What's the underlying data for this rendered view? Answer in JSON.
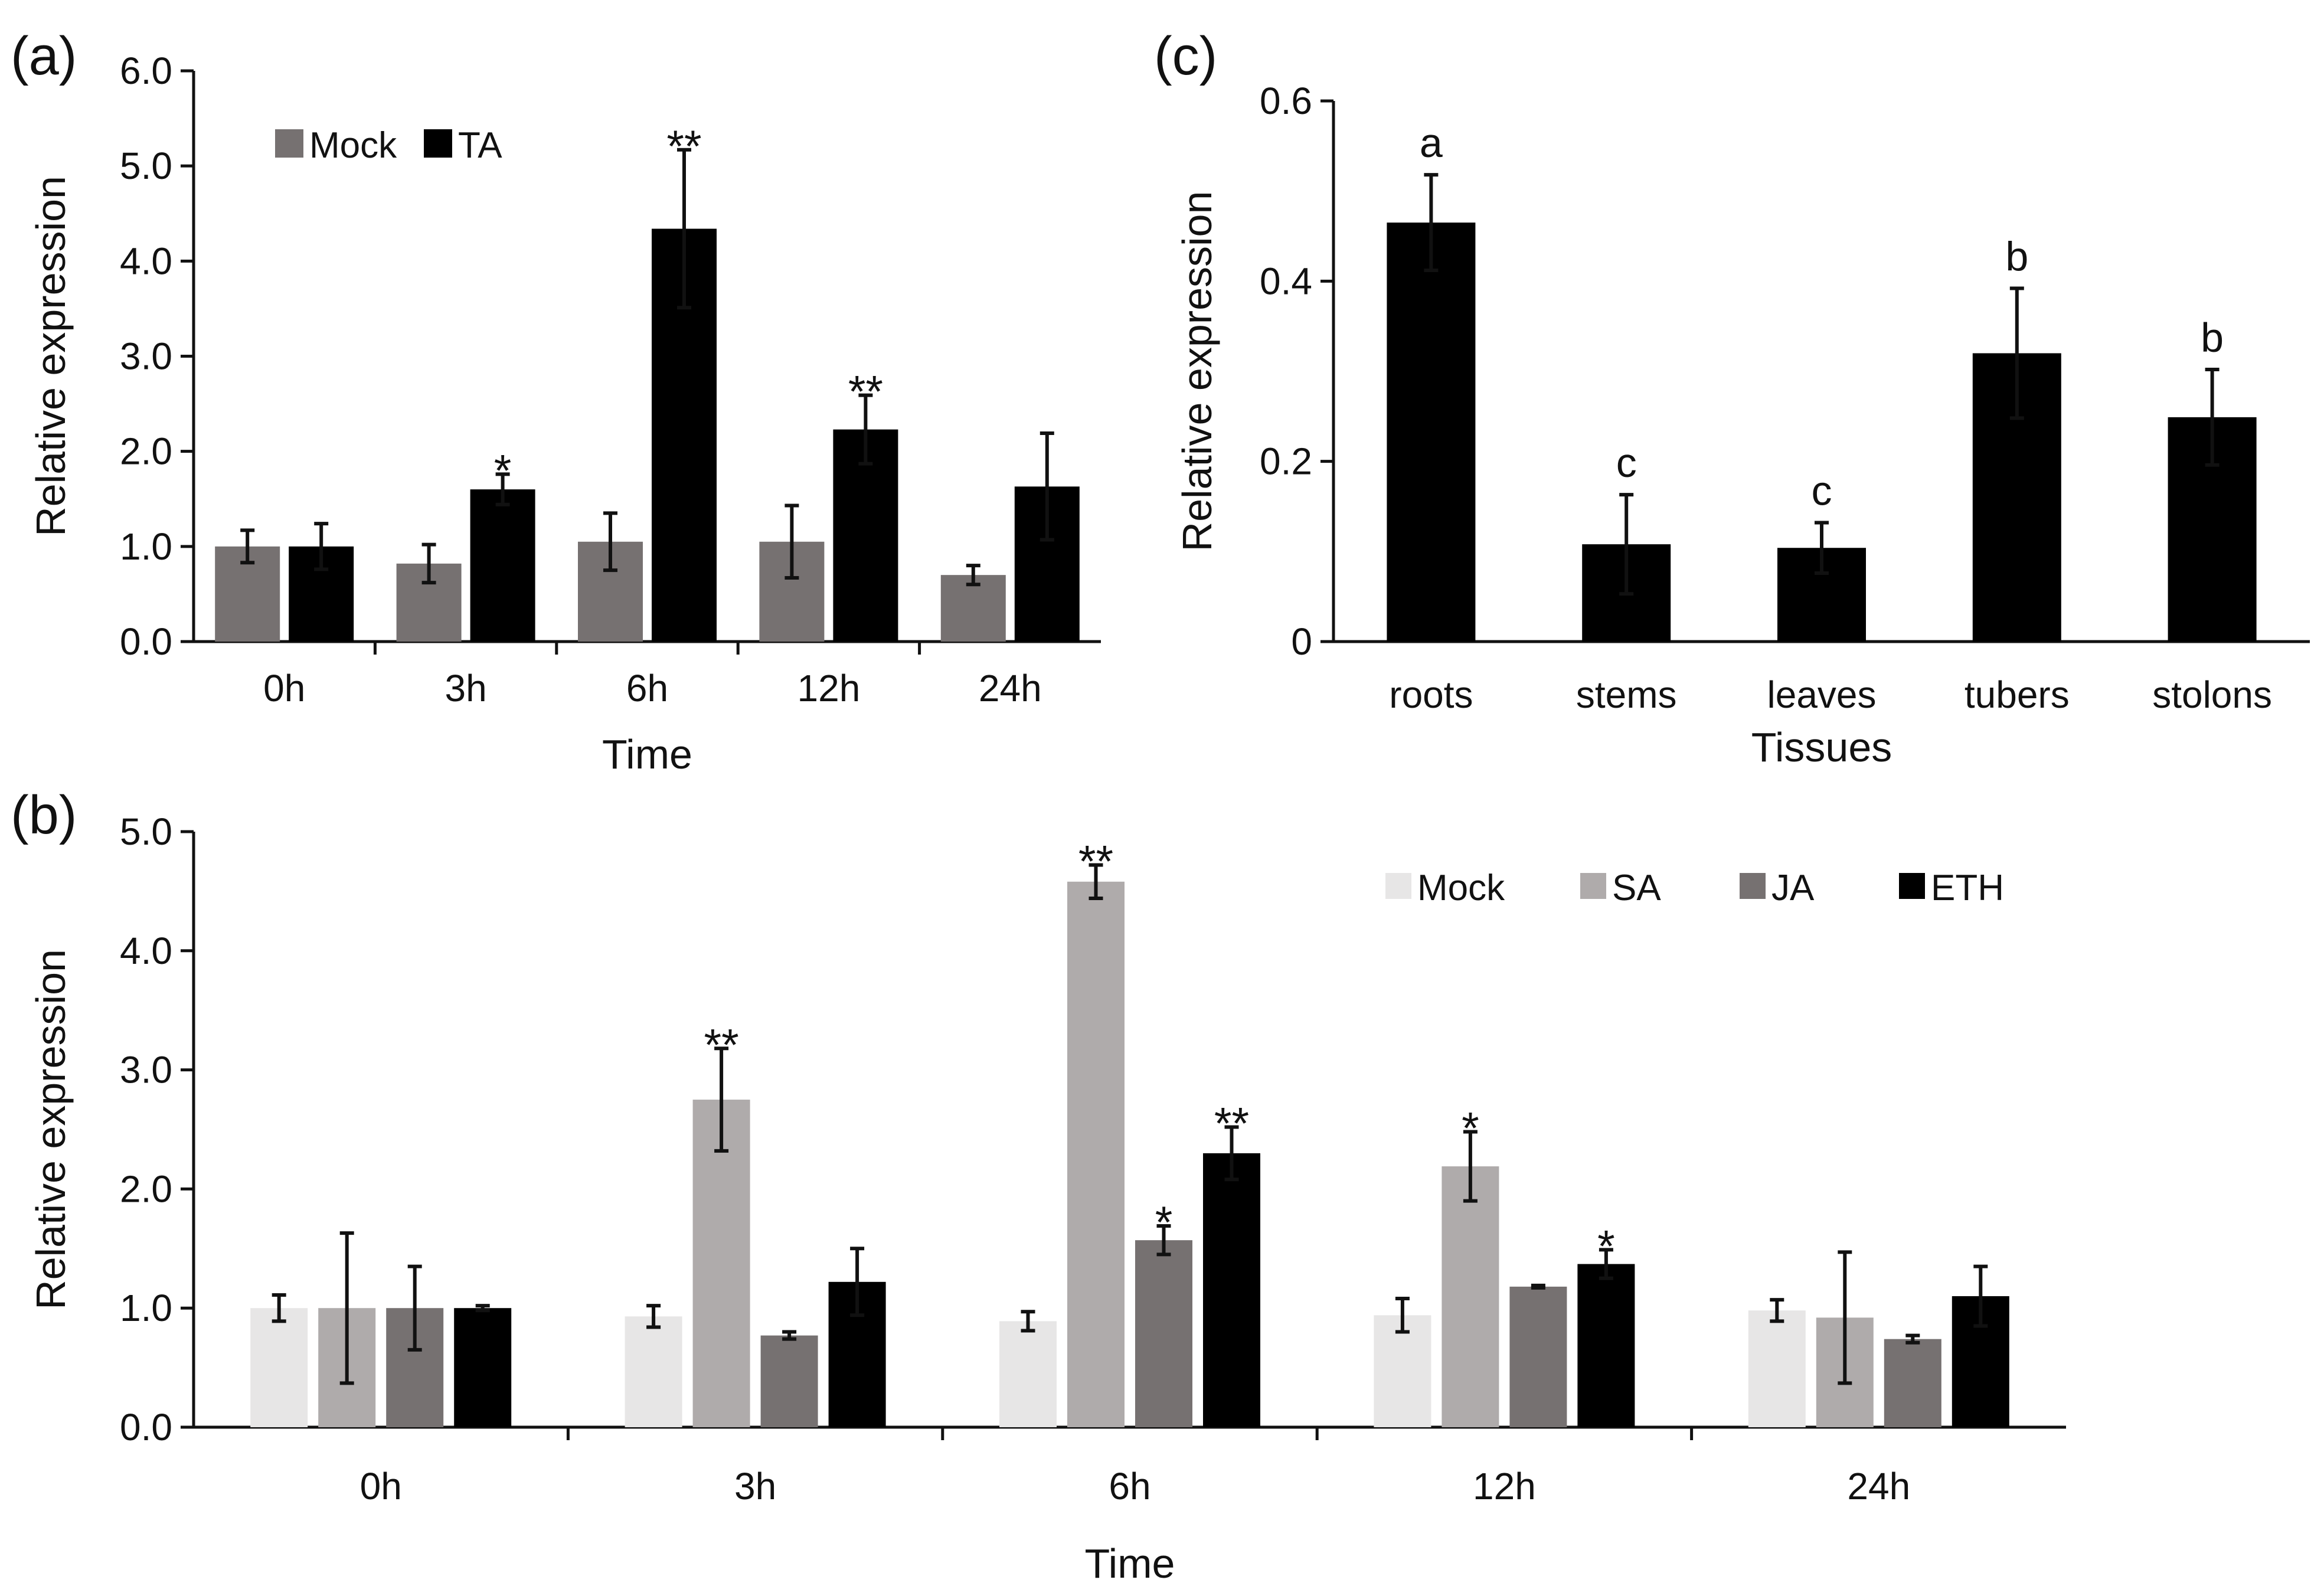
{
  "chart_data": [
    {
      "panel_label": "(a)",
      "type": "bar",
      "title": "",
      "xlabel": "Time",
      "ylabel": "Relative expression",
      "ylim": [
        0,
        6
      ],
      "yticks": [
        "0.0",
        "1.0",
        "2.0",
        "3.0",
        "4.0",
        "5.0",
        "6.0"
      ],
      "ytick_values": [
        0,
        1,
        2,
        3,
        4,
        5,
        6
      ],
      "categories": [
        "0h",
        "3h",
        "6h",
        "12h",
        "24h"
      ],
      "legend_position": "top-left",
      "grid": false,
      "series": [
        {
          "name": "Mock",
          "color": "#767171",
          "values": [
            1.0,
            0.82,
            1.05,
            1.05,
            0.7
          ],
          "errors": [
            0.17,
            0.2,
            0.3,
            0.38,
            0.1
          ],
          "annotations": [
            "",
            "",
            "",
            "",
            ""
          ]
        },
        {
          "name": "TA",
          "color": "#000000",
          "values": [
            1.0,
            1.6,
            4.34,
            2.23,
            1.63
          ],
          "errors": [
            0.24,
            0.16,
            0.83,
            0.36,
            0.56
          ],
          "annotations": [
            "",
            "*",
            "**",
            "**",
            ""
          ]
        }
      ]
    },
    {
      "panel_label": "(b)",
      "type": "bar",
      "title": "",
      "xlabel": "Time",
      "ylabel": "Relative expression",
      "ylim": [
        0,
        5
      ],
      "yticks": [
        "0.0",
        "1.0",
        "2.0",
        "3.0",
        "4.0",
        "5.0"
      ],
      "ytick_values": [
        0,
        1,
        2,
        3,
        4,
        5
      ],
      "categories": [
        "0h",
        "3h",
        "6h",
        "12h",
        "24h"
      ],
      "legend_position": "top-right",
      "grid": false,
      "series": [
        {
          "name": "Mock",
          "color": "#e7e6e6",
          "values": [
            1.0,
            0.93,
            0.89,
            0.94,
            0.98
          ],
          "errors": [
            0.11,
            0.09,
            0.08,
            0.14,
            0.09
          ],
          "annotations": [
            "",
            "",
            "",
            "",
            ""
          ]
        },
        {
          "name": "SA",
          "color": "#afabab",
          "values": [
            1.0,
            2.75,
            4.58,
            2.19,
            0.92
          ],
          "errors": [
            0.63,
            0.43,
            0.14,
            0.29,
            0.55
          ],
          "annotations": [
            "",
            "**",
            "**",
            "*",
            ""
          ]
        },
        {
          "name": "JA",
          "color": "#767171",
          "values": [
            1.0,
            0.77,
            1.57,
            1.18,
            0.74
          ],
          "errors": [
            0.35,
            0.03,
            0.12,
            0.01,
            0.03
          ],
          "annotations": [
            "",
            "",
            "*",
            "",
            ""
          ]
        },
        {
          "name": "ETH",
          "color": "#000000",
          "values": [
            1.0,
            1.22,
            2.3,
            1.37,
            1.1
          ],
          "errors": [
            0.02,
            0.28,
            0.22,
            0.12,
            0.25
          ],
          "annotations": [
            "",
            "",
            "**",
            "*",
            ""
          ]
        }
      ]
    },
    {
      "panel_label": "(c)",
      "type": "bar",
      "title": "",
      "xlabel": "Tissues",
      "ylabel": "Relative expression",
      "ylim": [
        0,
        0.6
      ],
      "yticks": [
        "0",
        "0.2",
        "0.4",
        "0.6"
      ],
      "ytick_values": [
        0,
        0.2,
        0.4,
        0.6
      ],
      "categories": [
        "roots",
        "stems",
        "leaves",
        "tubers",
        "stolons"
      ],
      "grid": false,
      "series": [
        {
          "name": "",
          "color": "#000000",
          "values": [
            0.465,
            0.108,
            0.104,
            0.32,
            0.249
          ],
          "errors": [
            0.053,
            0.055,
            0.028,
            0.072,
            0.053
          ],
          "annotations": [
            "a",
            "c",
            "c",
            "b",
            "b"
          ]
        }
      ]
    }
  ]
}
